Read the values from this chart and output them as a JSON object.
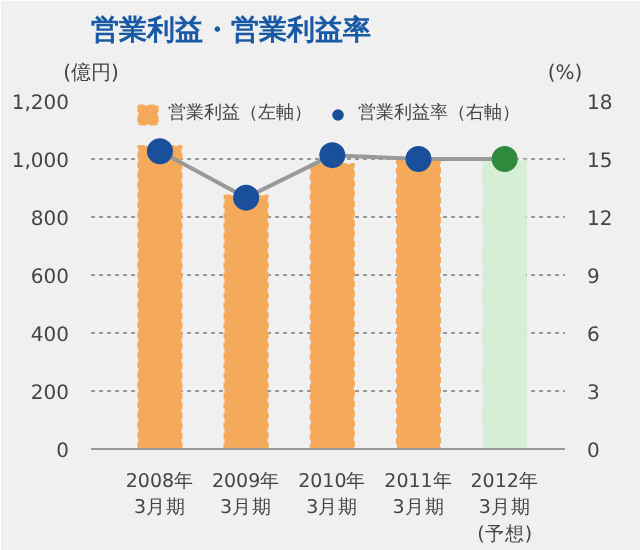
{
  "chart_data": {
    "type": "bar",
    "title": "営業利益・営業利益率",
    "ylabel": "(億円)",
    "y2label": "(%)",
    "categories": [
      "2008年\n3月期",
      "2009年\n3月期",
      "2010年\n3月期",
      "2011年\n3月期",
      "2012年\n3月期\n(予想)"
    ],
    "series": [
      {
        "name": "営業利益（左軸）",
        "colors": [
          "#f5a95a",
          "#f5a95a",
          "#f5a95a",
          "#f5a95a",
          "#d5eed5"
        ],
        "values": [
          1045,
          874,
          983,
          995,
          995
        ]
      },
      {
        "name": "営業利益率（右軸）",
        "type": "line",
        "axis": "y2",
        "color": "#999999",
        "colors": [
          "#1a4f9c",
          "#1a4f9c",
          "#1a4f9c",
          "#1a4f9c",
          "#2e8b3e"
        ],
        "marker": "circle",
        "values": [
          15.4,
          13.0,
          15.2,
          15.0,
          15.0
        ]
      }
    ],
    "ylim": [
      0,
      1200
    ],
    "yticks": [
      0,
      200,
      400,
      600,
      {
        "value": 800,
        "label": "800"
      },
      {
        "value": 1000,
        "label": "1,000"
      },
      {
        "value": 1200,
        "label": "1,200"
      }
    ],
    "y2lim": [
      0,
      18
    ],
    "y2ticks": [
      0,
      3,
      6,
      9,
      12,
      15,
      18
    ],
    "grid": "y",
    "legend": "top"
  }
}
